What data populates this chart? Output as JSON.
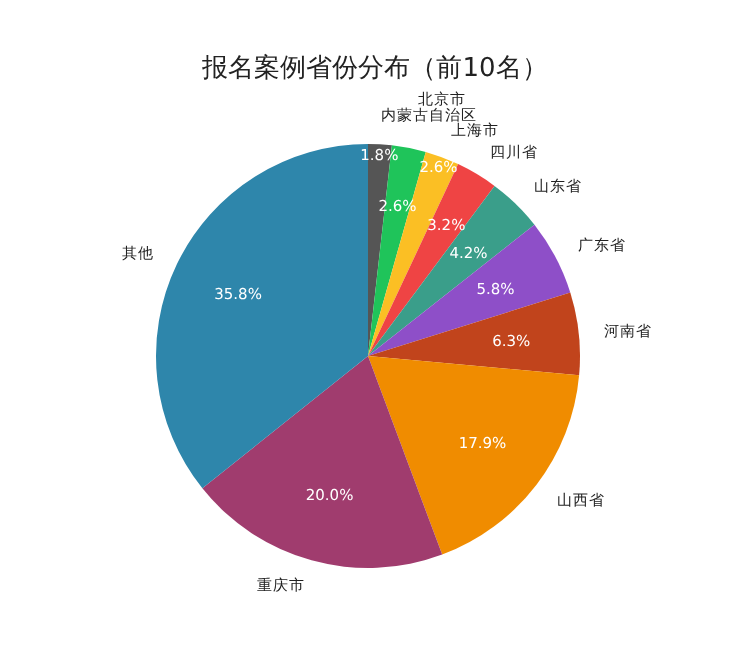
{
  "chart_data": {
    "type": "pie",
    "title": "报名案例省份分布（前10名）",
    "categories": [
      "内蒙古自治区",
      "北京市",
      "上海市",
      "四川省",
      "山东省",
      "广东省",
      "河南省",
      "山西省",
      "重庆市",
      "其他"
    ],
    "values": [
      1.8,
      2.6,
      2.6,
      3.2,
      4.2,
      5.8,
      6.3,
      17.9,
      20.0,
      35.8
    ],
    "value_labels": [
      "1.8%",
      "2.6%",
      "2.6%",
      "3.2%",
      "4.2%",
      "5.8%",
      "6.3%",
      "17.9%",
      "20.0%",
      "35.8%"
    ],
    "colors": [
      "#555555",
      "#1fc45a",
      "#fbbf24",
      "#ef4444",
      "#3a9e8a",
      "#8e4fc8",
      "#c1441c",
      "#f08c00",
      "#a03c6e",
      "#2e86ab"
    ]
  }
}
